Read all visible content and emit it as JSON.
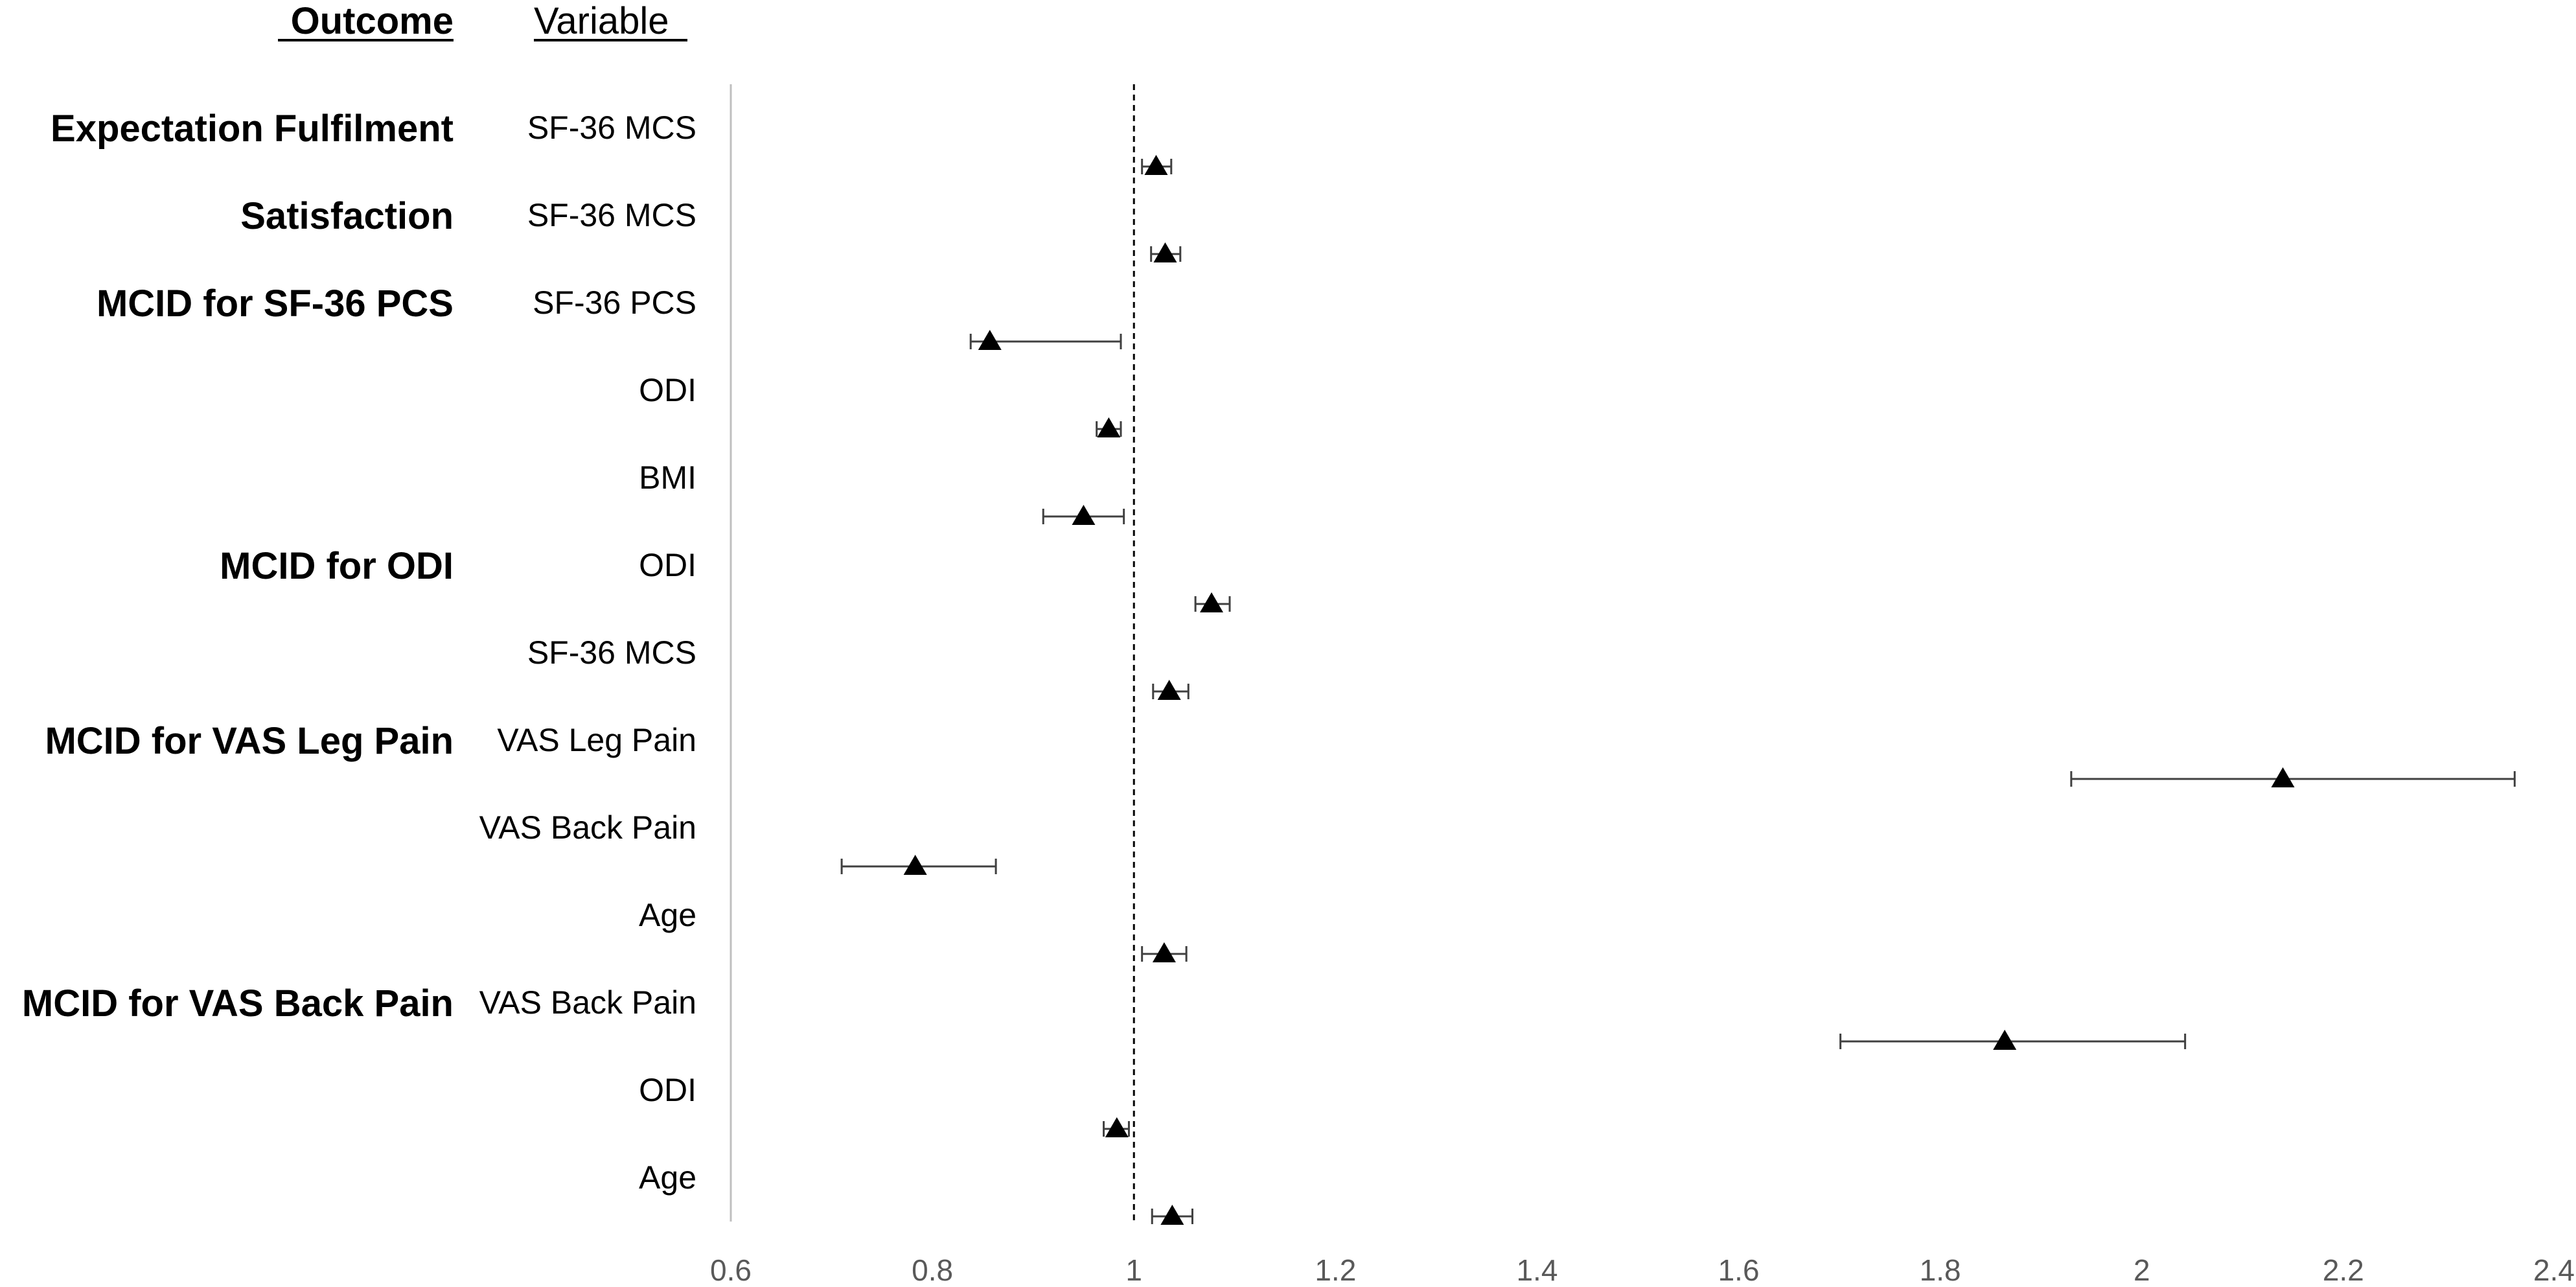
{
  "chart_data": {
    "type": "forest",
    "headers": {
      "outcome": "Outcome",
      "variable": "Variable"
    },
    "xlim": [
      0.6,
      2.4
    ],
    "xticks": [
      "0.6",
      "0.8",
      "1",
      "1.2",
      "1.4",
      "1.6",
      "1.8",
      "2",
      "2.2",
      "2.4"
    ],
    "reference_line": 1,
    "marker": "filled-triangle",
    "color": "#000000",
    "rows": [
      {
        "outcome": "Expectation Fulfilment",
        "variable": "SF-36 MCS",
        "estimate": 1.022,
        "ci_low": 1.008,
        "ci_high": 1.037
      },
      {
        "outcome": "Satisfaction",
        "variable": "SF-36 MCS",
        "estimate": 1.031,
        "ci_low": 1.017,
        "ci_high": 1.046
      },
      {
        "outcome": "MCID for SF-36 PCS",
        "variable": "SF-36 PCS",
        "estimate": 0.857,
        "ci_low": 0.838,
        "ci_high": 0.987
      },
      {
        "outcome": "",
        "variable": "ODI",
        "estimate": 0.975,
        "ci_low": 0.963,
        "ci_high": 0.987
      },
      {
        "outcome": "",
        "variable": "BMI",
        "estimate": 0.95,
        "ci_low": 0.91,
        "ci_high": 0.99
      },
      {
        "outcome": "MCID for ODI",
        "variable": "ODI",
        "estimate": 1.077,
        "ci_low": 1.061,
        "ci_high": 1.095
      },
      {
        "outcome": "",
        "variable": "SF-36 MCS",
        "estimate": 1.035,
        "ci_low": 1.019,
        "ci_high": 1.054
      },
      {
        "outcome": "MCID for VAS Leg Pain",
        "variable": "VAS Leg Pain",
        "estimate": 2.14,
        "ci_low": 1.93,
        "ci_high": 2.37
      },
      {
        "outcome": "",
        "variable": "VAS Back Pain",
        "estimate": 0.783,
        "ci_low": 0.71,
        "ci_high": 0.863
      },
      {
        "outcome": "",
        "variable": "Age",
        "estimate": 1.03,
        "ci_low": 1.008,
        "ci_high": 1.052
      },
      {
        "outcome": "MCID for VAS Back Pain",
        "variable": "VAS Back Pain",
        "estimate": 1.864,
        "ci_low": 1.701,
        "ci_high": 2.043
      },
      {
        "outcome": "",
        "variable": "ODI",
        "estimate": 0.983,
        "ci_low": 0.97,
        "ci_high": 0.995
      },
      {
        "outcome": "",
        "variable": "Age",
        "estimate": 1.038,
        "ci_low": 1.018,
        "ci_high": 1.058
      }
    ]
  }
}
